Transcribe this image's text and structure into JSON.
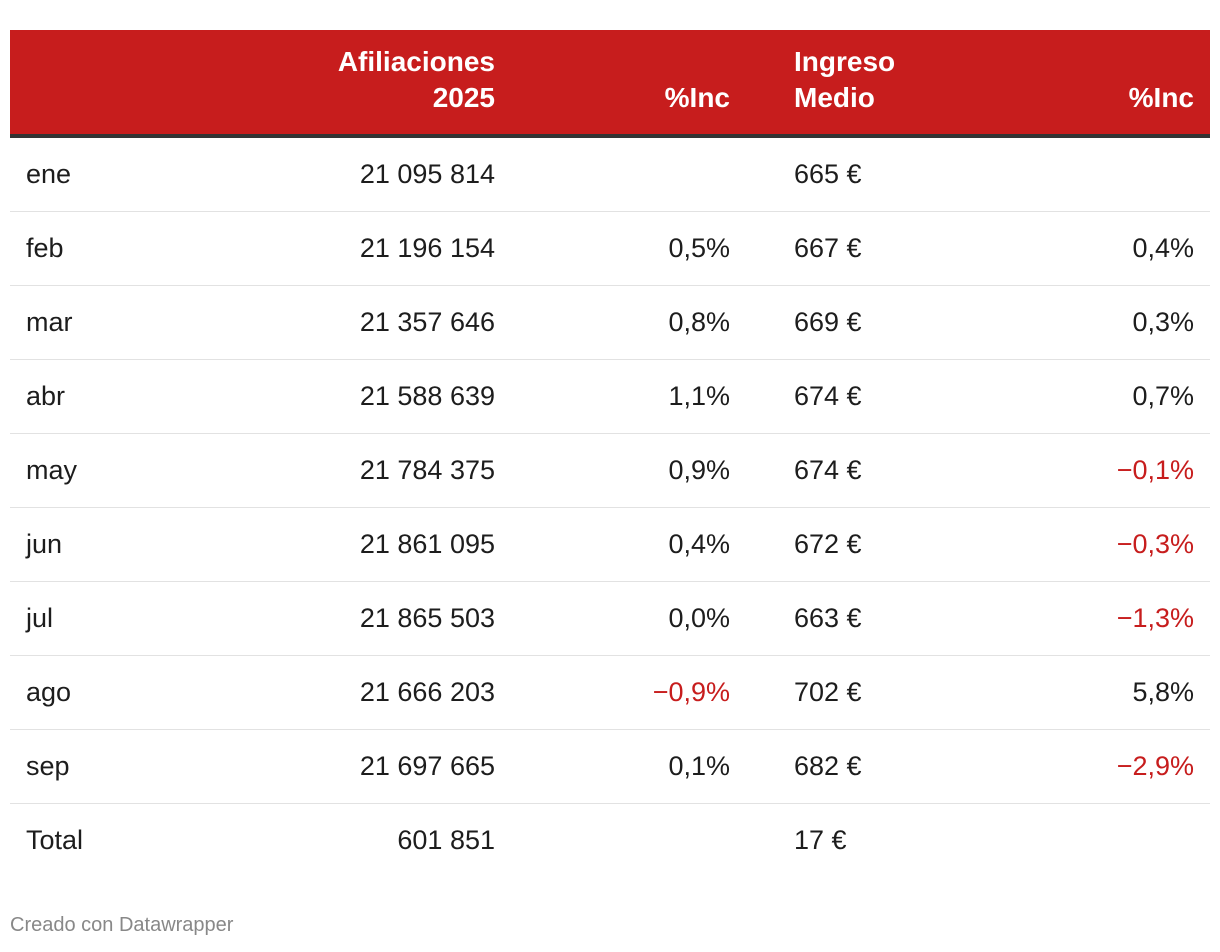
{
  "chart_data": {
    "type": "table",
    "columns": [
      "",
      "Afiliaciones 2025",
      "%Inc",
      "Ingreso Medio",
      "%Inc"
    ],
    "header": {
      "month": "",
      "afiliaciones_line1": "Afiliaciones",
      "afiliaciones_line2": "2025",
      "inc1": "%Inc",
      "ingreso_line1": "Ingreso",
      "ingreso_line2": "Medio",
      "inc2": "%Inc"
    },
    "rows": [
      {
        "month": "ene",
        "afiliaciones": "21 095 814",
        "inc1": "",
        "ingreso": "665 €",
        "inc2": ""
      },
      {
        "month": "feb",
        "afiliaciones": "21 196 154",
        "inc1": "0,5%",
        "ingreso": "667 €",
        "inc2": "0,4%"
      },
      {
        "month": "mar",
        "afiliaciones": "21 357 646",
        "inc1": "0,8%",
        "ingreso": "669 €",
        "inc2": "0,3%"
      },
      {
        "month": "abr",
        "afiliaciones": "21 588 639",
        "inc1": "1,1%",
        "ingreso": "674 €",
        "inc2": "0,7%"
      },
      {
        "month": "may",
        "afiliaciones": "21 784 375",
        "inc1": "0,9%",
        "ingreso": "674 €",
        "inc2": "−0,1%"
      },
      {
        "month": "jun",
        "afiliaciones": "21 861 095",
        "inc1": "0,4%",
        "ingreso": "672 €",
        "inc2": "−0,3%"
      },
      {
        "month": "jul",
        "afiliaciones": "21 865 503",
        "inc1": "0,0%",
        "ingreso": "663 €",
        "inc2": "−1,3%"
      },
      {
        "month": "ago",
        "afiliaciones": "21 666 203",
        "inc1": "−0,9%",
        "ingreso": "702 €",
        "inc2": "5,8%"
      },
      {
        "month": "sep",
        "afiliaciones": "21 697 665",
        "inc1": "0,1%",
        "ingreso": "682 €",
        "inc2": "−2,9%"
      },
      {
        "month": "Total",
        "afiliaciones": "601 851",
        "inc1": "",
        "ingreso": "17 €",
        "inc2": ""
      }
    ],
    "colors": {
      "header_bg": "#c71d1d",
      "negative": "#c71d1d",
      "text": "#1d1d1d"
    }
  },
  "footer": {
    "credit": "Creado con Datawrapper"
  }
}
